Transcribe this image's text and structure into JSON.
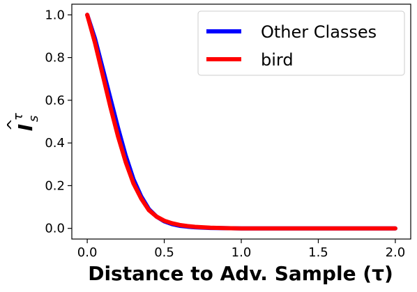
{
  "chart_data": {
    "type": "line",
    "xlabel": "Distance to Adv. Sample (τ)",
    "ylabel": {
      "symbol": "I",
      "subscript": "s",
      "superscript": "τ",
      "hat": "^"
    },
    "xlim": [
      -0.1,
      2.1
    ],
    "ylim": [
      -0.05,
      1.05
    ],
    "xticks": [
      "0.0",
      "0.5",
      "1.0",
      "1.5",
      "2.0"
    ],
    "yticks": [
      "0.0",
      "0.2",
      "0.4",
      "0.6",
      "0.8",
      "1.0"
    ],
    "grid": false,
    "legend_position": "top-right",
    "series": [
      {
        "name": "Other Classes",
        "color": "#0000ff",
        "x": [
          0.0,
          0.05,
          0.1,
          0.15,
          0.2,
          0.25,
          0.3,
          0.35,
          0.4,
          0.45,
          0.5,
          0.55,
          0.6,
          0.65,
          0.7,
          0.8,
          0.9,
          1.0,
          1.2,
          1.5,
          2.0
        ],
        "y": [
          1.0,
          0.89,
          0.75,
          0.61,
          0.47,
          0.34,
          0.23,
          0.15,
          0.09,
          0.055,
          0.033,
          0.02,
          0.012,
          0.008,
          0.005,
          0.002,
          0.001,
          0.0,
          0.0,
          0.0,
          0.0
        ]
      },
      {
        "name": "bird",
        "color": "#ff0000",
        "x": [
          0.0,
          0.05,
          0.1,
          0.15,
          0.2,
          0.25,
          0.3,
          0.35,
          0.4,
          0.45,
          0.5,
          0.55,
          0.6,
          0.65,
          0.7,
          0.8,
          0.9,
          1.0,
          1.2,
          1.5,
          2.0
        ],
        "y": [
          1.0,
          0.87,
          0.72,
          0.57,
          0.43,
          0.31,
          0.21,
          0.14,
          0.085,
          0.055,
          0.036,
          0.024,
          0.016,
          0.011,
          0.007,
          0.003,
          0.001,
          0.0,
          0.0,
          0.0,
          0.0
        ]
      }
    ]
  }
}
